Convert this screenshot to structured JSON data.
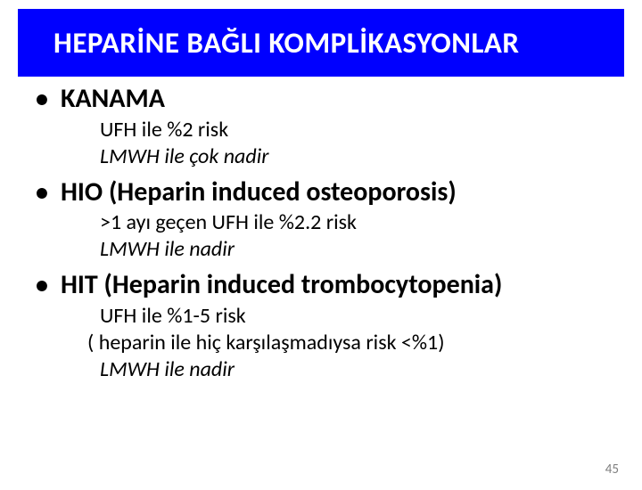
{
  "title": "HEPARİNE BAĞLI KOMPLİKASYONLAR",
  "bullets": [
    {
      "heading": "KANAMA",
      "lines": [
        {
          "text": "UFH ile %2 risk",
          "italic": false
        },
        {
          "text": "LMWH ile çok nadir",
          "italic": true
        }
      ]
    },
    {
      "heading": "HIO (Heparin induced osteoporosis)",
      "lines": [
        {
          "text": ">1 ayı geçen UFH ile %2.2 risk",
          "italic": false
        },
        {
          "text": "LMWH ile nadir",
          "italic": true
        }
      ]
    },
    {
      "heading": "HIT (Heparin induced trombocytopenia)",
      "lines": [
        {
          "text": "UFH ile %1-5 risk",
          "italic": false
        },
        {
          "text": "( heparin ile hiç karşılaşmadıysa risk <%1)",
          "italic": false,
          "paren": true
        },
        {
          "text": "LMWH ile nadir",
          "italic": true
        }
      ]
    }
  ],
  "colors": {
    "title_bg": "#0000ff",
    "title_text": "#ffffff",
    "body_text": "#000000",
    "page_num": "#7f7f7f",
    "background": "#ffffff"
  },
  "typography": {
    "title_fontsize": 33,
    "bullet_fontsize": 30,
    "sub_fontsize": 24,
    "pagenum_fontsize": 15,
    "font_family": "Calibri"
  },
  "page_number": "45"
}
